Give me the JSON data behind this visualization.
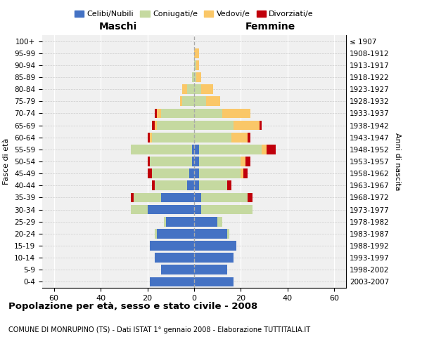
{
  "age_groups": [
    "0-4",
    "5-9",
    "10-14",
    "15-19",
    "20-24",
    "25-29",
    "30-34",
    "35-39",
    "40-44",
    "45-49",
    "50-54",
    "55-59",
    "60-64",
    "65-69",
    "70-74",
    "75-79",
    "80-84",
    "85-89",
    "90-94",
    "95-99",
    "100+"
  ],
  "birth_years": [
    "2003-2007",
    "1998-2002",
    "1993-1997",
    "1988-1992",
    "1983-1987",
    "1978-1982",
    "1973-1977",
    "1968-1972",
    "1963-1967",
    "1958-1962",
    "1953-1957",
    "1948-1952",
    "1943-1947",
    "1938-1942",
    "1933-1937",
    "1928-1932",
    "1923-1927",
    "1918-1922",
    "1913-1917",
    "1908-1912",
    "≤ 1907"
  ],
  "males": {
    "celibi": [
      19,
      14,
      17,
      19,
      16,
      12,
      20,
      14,
      3,
      2,
      1,
      1,
      0,
      0,
      0,
      0,
      0,
      0,
      0,
      0,
      0
    ],
    "coniugati": [
      0,
      0,
      0,
      0,
      1,
      1,
      7,
      12,
      14,
      16,
      18,
      26,
      18,
      16,
      14,
      5,
      3,
      1,
      0,
      0,
      0
    ],
    "vedovi": [
      0,
      0,
      0,
      0,
      0,
      0,
      0,
      0,
      0,
      0,
      0,
      0,
      1,
      1,
      2,
      1,
      2,
      0,
      0,
      0,
      0
    ],
    "divorziati": [
      0,
      0,
      0,
      0,
      0,
      0,
      0,
      1,
      1,
      2,
      1,
      0,
      1,
      1,
      1,
      0,
      0,
      0,
      0,
      0,
      0
    ]
  },
  "females": {
    "nubili": [
      17,
      14,
      17,
      18,
      14,
      10,
      3,
      3,
      2,
      2,
      2,
      2,
      0,
      0,
      0,
      0,
      0,
      0,
      0,
      0,
      0
    ],
    "coniugate": [
      0,
      0,
      0,
      0,
      1,
      2,
      22,
      20,
      12,
      18,
      18,
      27,
      16,
      17,
      12,
      5,
      3,
      1,
      1,
      0,
      0
    ],
    "vedove": [
      0,
      0,
      0,
      0,
      0,
      0,
      0,
      0,
      0,
      1,
      2,
      2,
      7,
      11,
      12,
      6,
      5,
      2,
      1,
      2,
      0
    ],
    "divorziate": [
      0,
      0,
      0,
      0,
      0,
      0,
      0,
      2,
      2,
      2,
      2,
      4,
      1,
      1,
      0,
      0,
      0,
      0,
      0,
      0,
      0
    ]
  },
  "colors": {
    "celibi": "#4472C4",
    "coniugati": "#C5D9A0",
    "vedovi": "#FAC768",
    "divorziati": "#C0000B"
  },
  "legend_labels": [
    "Celibi/Nubili",
    "Coniugati/e",
    "Vedovi/e",
    "Divorziati/e"
  ],
  "title": "Popolazione per età, sesso e stato civile - 2008",
  "subtitle": "COMUNE DI MONRUPINO (TS) - Dati ISTAT 1° gennaio 2008 - Elaborazione TUTTITALIA.IT",
  "xlabel_left": "Maschi",
  "xlabel_right": "Femmine",
  "ylabel_left": "Fasce di età",
  "ylabel_right": "Anni di nascita",
  "xlim": 65,
  "background_color": "#ffffff",
  "plot_bg": "#f0f0f0"
}
